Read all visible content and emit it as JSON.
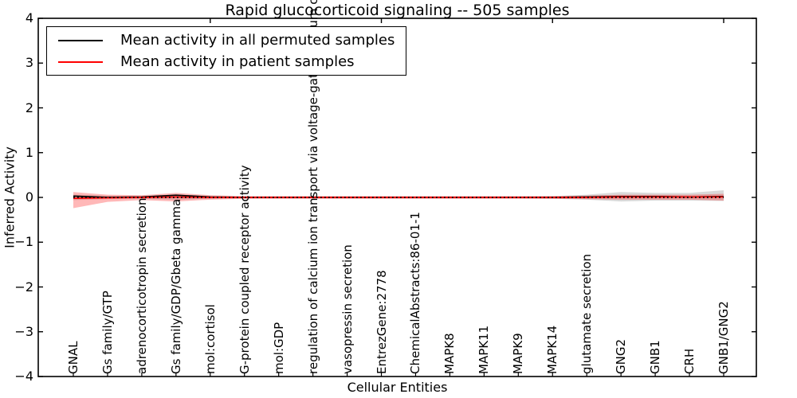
{
  "title": "Rapid glucocorticoid signaling -- 505 samples",
  "legend": {
    "items": [
      {
        "label": "Mean activity in all permuted samples",
        "color": "#000000"
      },
      {
        "label": "Mean activity in patient samples",
        "color": "#ff0000"
      }
    ]
  },
  "colors": {
    "permuted_line": "#000000",
    "patient_line": "#ff0000",
    "patient_band": "rgba(255,0,0,0.28)",
    "permuted_band": "rgba(130,130,130,0.30)",
    "axis": "#000000"
  },
  "chart_data": {
    "type": "line",
    "title": "Rapid glucocorticoid signaling -- 505 samples",
    "xlabel": "Cellular Entities",
    "ylabel": "Inferred Activity",
    "ylim": [
      -4,
      4
    ],
    "yticks": [
      4,
      3,
      2,
      1,
      0,
      -1,
      -2,
      -3,
      -4
    ],
    "grid": false,
    "legend_position": "upper left",
    "categories": [
      "GNAL",
      "Gs family/GTP",
      "adrenocorticotropin secretion",
      "Gs family/GDP/Gbeta gamma",
      "mol:cortisol",
      "G-protein coupled receptor activity",
      "mol:GDP",
      "regulation of calcium ion transport via voltage-gated calcium channels",
      "vasopressin secretion",
      "EntrezGene:2778",
      "ChemicalAbstracts:86-01-1",
      "MAPK8",
      "MAPK11",
      "MAPK9",
      "MAPK14",
      "glutamate secretion",
      "GNG2",
      "GNB1",
      "CRH",
      "GNB1/GNG2"
    ],
    "series": [
      {
        "name": "Mean activity in all permuted samples",
        "style": "solid",
        "colorKey": "permuted_line",
        "values": [
          0.03,
          0.0,
          0.01,
          0.05,
          0.01,
          0.0,
          0.0,
          0.0,
          0.0,
          0.0,
          0.0,
          0.0,
          0.0,
          0.0,
          0.0,
          0.01,
          0.02,
          0.02,
          0.01,
          0.02
        ]
      },
      {
        "name": "Mean activity in patient samples",
        "style": "solid",
        "colorKey": "patient_line",
        "values": [
          -0.02,
          -0.01,
          0.0,
          0.01,
          0.0,
          0.0,
          0.0,
          0.0,
          0.0,
          0.0,
          0.0,
          0.0,
          0.0,
          0.0,
          0.0,
          0.0,
          0.01,
          0.01,
          0.01,
          0.01
        ]
      },
      {
        "name": "zero-reference",
        "style": "dotted",
        "colorKey": "permuted_line",
        "values": [
          0,
          0,
          0,
          0,
          0,
          0,
          0,
          0,
          0,
          0,
          0,
          0,
          0,
          0,
          0,
          0,
          0,
          0,
          0,
          0
        ]
      }
    ],
    "bands": [
      {
        "name": "permuted-std-band",
        "colorKey": "permuted_band",
        "upper": [
          0.06,
          0.04,
          0.03,
          0.06,
          0.03,
          0.02,
          0.02,
          0.02,
          0.02,
          0.02,
          0.02,
          0.02,
          0.02,
          0.02,
          0.03,
          0.06,
          0.12,
          0.1,
          0.1,
          0.16
        ],
        "lower": [
          -0.06,
          -0.04,
          -0.03,
          -0.05,
          -0.03,
          -0.02,
          -0.02,
          -0.02,
          -0.02,
          -0.02,
          -0.02,
          -0.02,
          -0.02,
          -0.02,
          -0.03,
          -0.05,
          -0.09,
          -0.07,
          -0.07,
          -0.08
        ]
      },
      {
        "name": "patient-std-band",
        "colorKey": "patient_band",
        "upper": [
          0.12,
          0.06,
          0.05,
          0.1,
          0.05,
          0.03,
          0.03,
          0.03,
          0.03,
          0.03,
          0.03,
          0.03,
          0.03,
          0.03,
          0.03,
          0.04,
          0.06,
          0.06,
          0.06,
          0.08
        ],
        "lower": [
          -0.24,
          -0.1,
          -0.06,
          -0.09,
          -0.05,
          -0.03,
          -0.03,
          -0.03,
          -0.03,
          -0.03,
          -0.03,
          -0.03,
          -0.03,
          -0.03,
          -0.03,
          -0.04,
          -0.05,
          -0.05,
          -0.05,
          -0.07
        ]
      }
    ]
  }
}
